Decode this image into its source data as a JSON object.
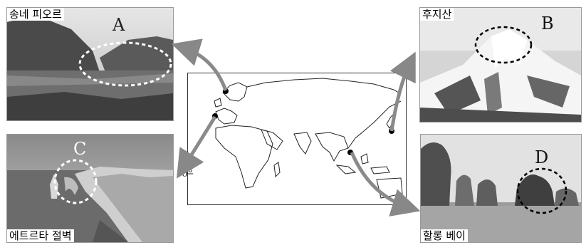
{
  "photos": {
    "a": {
      "label": "송네 피오르",
      "letter": "A"
    },
    "b": {
      "label": "후지산",
      "letter": "B"
    },
    "c": {
      "label": "에트르타 절벽",
      "letter": "C"
    },
    "d": {
      "label": "할롱 베이",
      "letter": "D"
    }
  },
  "map": {
    "equator_label": "0°"
  }
}
